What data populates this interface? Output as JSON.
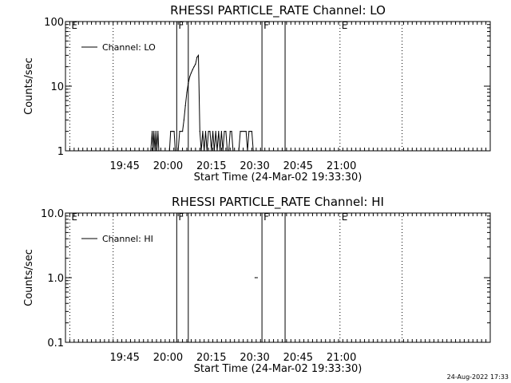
{
  "chart_data": [
    {
      "type": "line",
      "title": "RHESSI PARTICLE_RATE Channel: LO",
      "xlabel": "Start Time (24-Mar-02 19:33:30)",
      "ylabel": "Counts/sec",
      "yscale": "log",
      "ylim": [
        1,
        100
      ],
      "yticks": [
        {
          "v": 1,
          "label": "1"
        },
        {
          "v": 10,
          "label": "10"
        },
        {
          "v": 100,
          "label": "100"
        }
      ],
      "xlim_min": [
        -9,
        138
      ],
      "xticks": [
        {
          "t": 11.5,
          "label": "19:45"
        },
        {
          "t": 26.5,
          "label": "20:00"
        },
        {
          "t": 41.5,
          "label": "20:15"
        },
        {
          "t": 56.5,
          "label": "20:30"
        },
        {
          "t": 71.5,
          "label": "20:45"
        },
        {
          "t": 86.5,
          "label": "21:00"
        }
      ],
      "legend": {
        "position": "top-left",
        "entries": [
          "Channel: LO"
        ]
      },
      "series": [
        {
          "name": "Channel: LO",
          "x": [
            20.5,
            21.0,
            21.3,
            21.6,
            22.0,
            22.3,
            22.6,
            23.0,
            23.3,
            27.0,
            27.4,
            27.8,
            28.2,
            28.6,
            29.0,
            30.0,
            30.5,
            31.0,
            31.5,
            32.0,
            32.5,
            33.0,
            33.5,
            34.0,
            34.5,
            35.0,
            35.5,
            36.0,
            36.5,
            37.0,
            37.5,
            38.0,
            38.5,
            39.0,
            39.5,
            40.0,
            40.5,
            41.0,
            41.5,
            42.0,
            42.5,
            43.0,
            43.5,
            44.0,
            44.5,
            45.0,
            45.5,
            46.0,
            46.5,
            47.0,
            47.5,
            48.0,
            48.5,
            49.0,
            51.0,
            51.5,
            52.0,
            52.5,
            53.0,
            53.5,
            54.0,
            54.5,
            55.0,
            55.5,
            56.0
          ],
          "y": [
            1,
            2,
            1,
            2,
            1,
            2,
            1,
            2,
            1,
            1,
            2,
            2,
            2,
            2,
            1,
            1,
            2,
            2,
            2,
            3,
            5,
            8,
            11,
            14,
            16,
            18,
            20,
            22,
            28,
            30,
            2,
            1,
            2,
            1,
            2,
            1,
            2,
            2,
            1,
            2,
            1,
            2,
            1,
            2,
            1,
            2,
            1,
            2,
            2,
            1,
            1,
            2,
            2,
            1,
            1,
            2,
            2,
            2,
            2,
            2,
            1,
            2,
            2,
            2,
            1
          ]
        }
      ],
      "markers": [
        {
          "t": -7.5,
          "label": "E",
          "style": "dotted"
        },
        {
          "t": 7.5,
          "style": "dotted"
        },
        {
          "t": 29.5,
          "label": "F",
          "style": "solid"
        },
        {
          "t": 33.5,
          "style": "solid"
        },
        {
          "t": 59.0,
          "label": "F",
          "style": "solid"
        },
        {
          "t": 67.0,
          "style": "solid"
        },
        {
          "t": 86.0,
          "label": "E",
          "style": "dotted"
        },
        {
          "t": 107.5,
          "style": "dotted"
        }
      ]
    },
    {
      "type": "line",
      "title": "RHESSI PARTICLE_RATE Channel: HI",
      "xlabel": "Start Time (24-Mar-02 19:33:30)",
      "ylabel": "Counts/sec",
      "yscale": "log",
      "ylim": [
        0.1,
        10
      ],
      "yticks": [
        {
          "v": 0.1,
          "label": "0.1"
        },
        {
          "v": 1,
          "label": "1.0"
        },
        {
          "v": 10,
          "label": "10.0"
        }
      ],
      "xlim_min": [
        -9,
        138
      ],
      "xticks": [
        {
          "t": 11.5,
          "label": "19:45"
        },
        {
          "t": 26.5,
          "label": "20:00"
        },
        {
          "t": 41.5,
          "label": "20:15"
        },
        {
          "t": 56.5,
          "label": "20:30"
        },
        {
          "t": 71.5,
          "label": "20:45"
        },
        {
          "t": 86.5,
          "label": "21:00"
        }
      ],
      "legend": {
        "position": "top-left",
        "entries": [
          "Channel: HI"
        ]
      },
      "series": [
        {
          "name": "Channel: HI",
          "x": [
            56.6,
            57.4
          ],
          "y": [
            1,
            1
          ]
        }
      ],
      "markers": [
        {
          "t": -7.5,
          "label": "E",
          "style": "dotted"
        },
        {
          "t": 7.5,
          "style": "dotted"
        },
        {
          "t": 29.5,
          "label": "F",
          "style": "solid"
        },
        {
          "t": 33.5,
          "style": "solid"
        },
        {
          "t": 59.0,
          "label": "F",
          "style": "solid"
        },
        {
          "t": 67.0,
          "style": "solid"
        },
        {
          "t": 86.0,
          "label": "E",
          "style": "dotted"
        },
        {
          "t": 107.5,
          "style": "dotted"
        }
      ]
    }
  ],
  "footer": {
    "timestamp": "24-Aug-2022 17:33"
  }
}
